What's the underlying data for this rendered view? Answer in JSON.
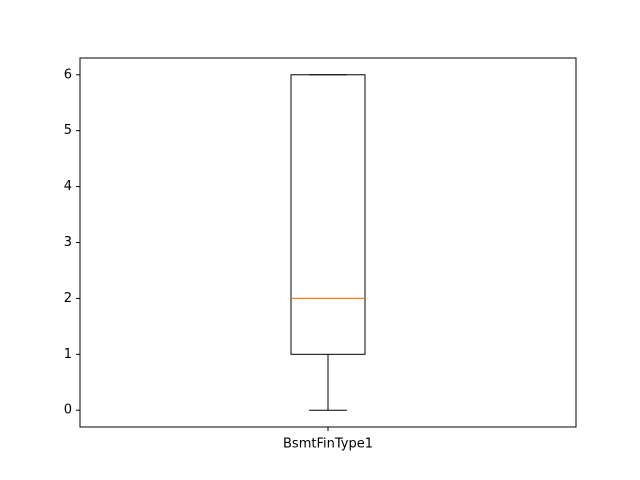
{
  "chart_data": {
    "type": "box",
    "categories": [
      "BsmtFinType1"
    ],
    "boxes": [
      {
        "label": "BsmtFinType1",
        "whisker_low": 0,
        "q1": 1,
        "median": 2,
        "q3": 6,
        "whisker_high": 6
      }
    ],
    "y_ticks": [
      0,
      1,
      2,
      3,
      4,
      5,
      6
    ],
    "ylim": [
      -0.3,
      6.3
    ],
    "title": "",
    "xlabel": "",
    "ylabel": "",
    "grid": false,
    "colors": {
      "box": "#000000",
      "median": "#ff7f0e",
      "axes": "#000000"
    }
  }
}
